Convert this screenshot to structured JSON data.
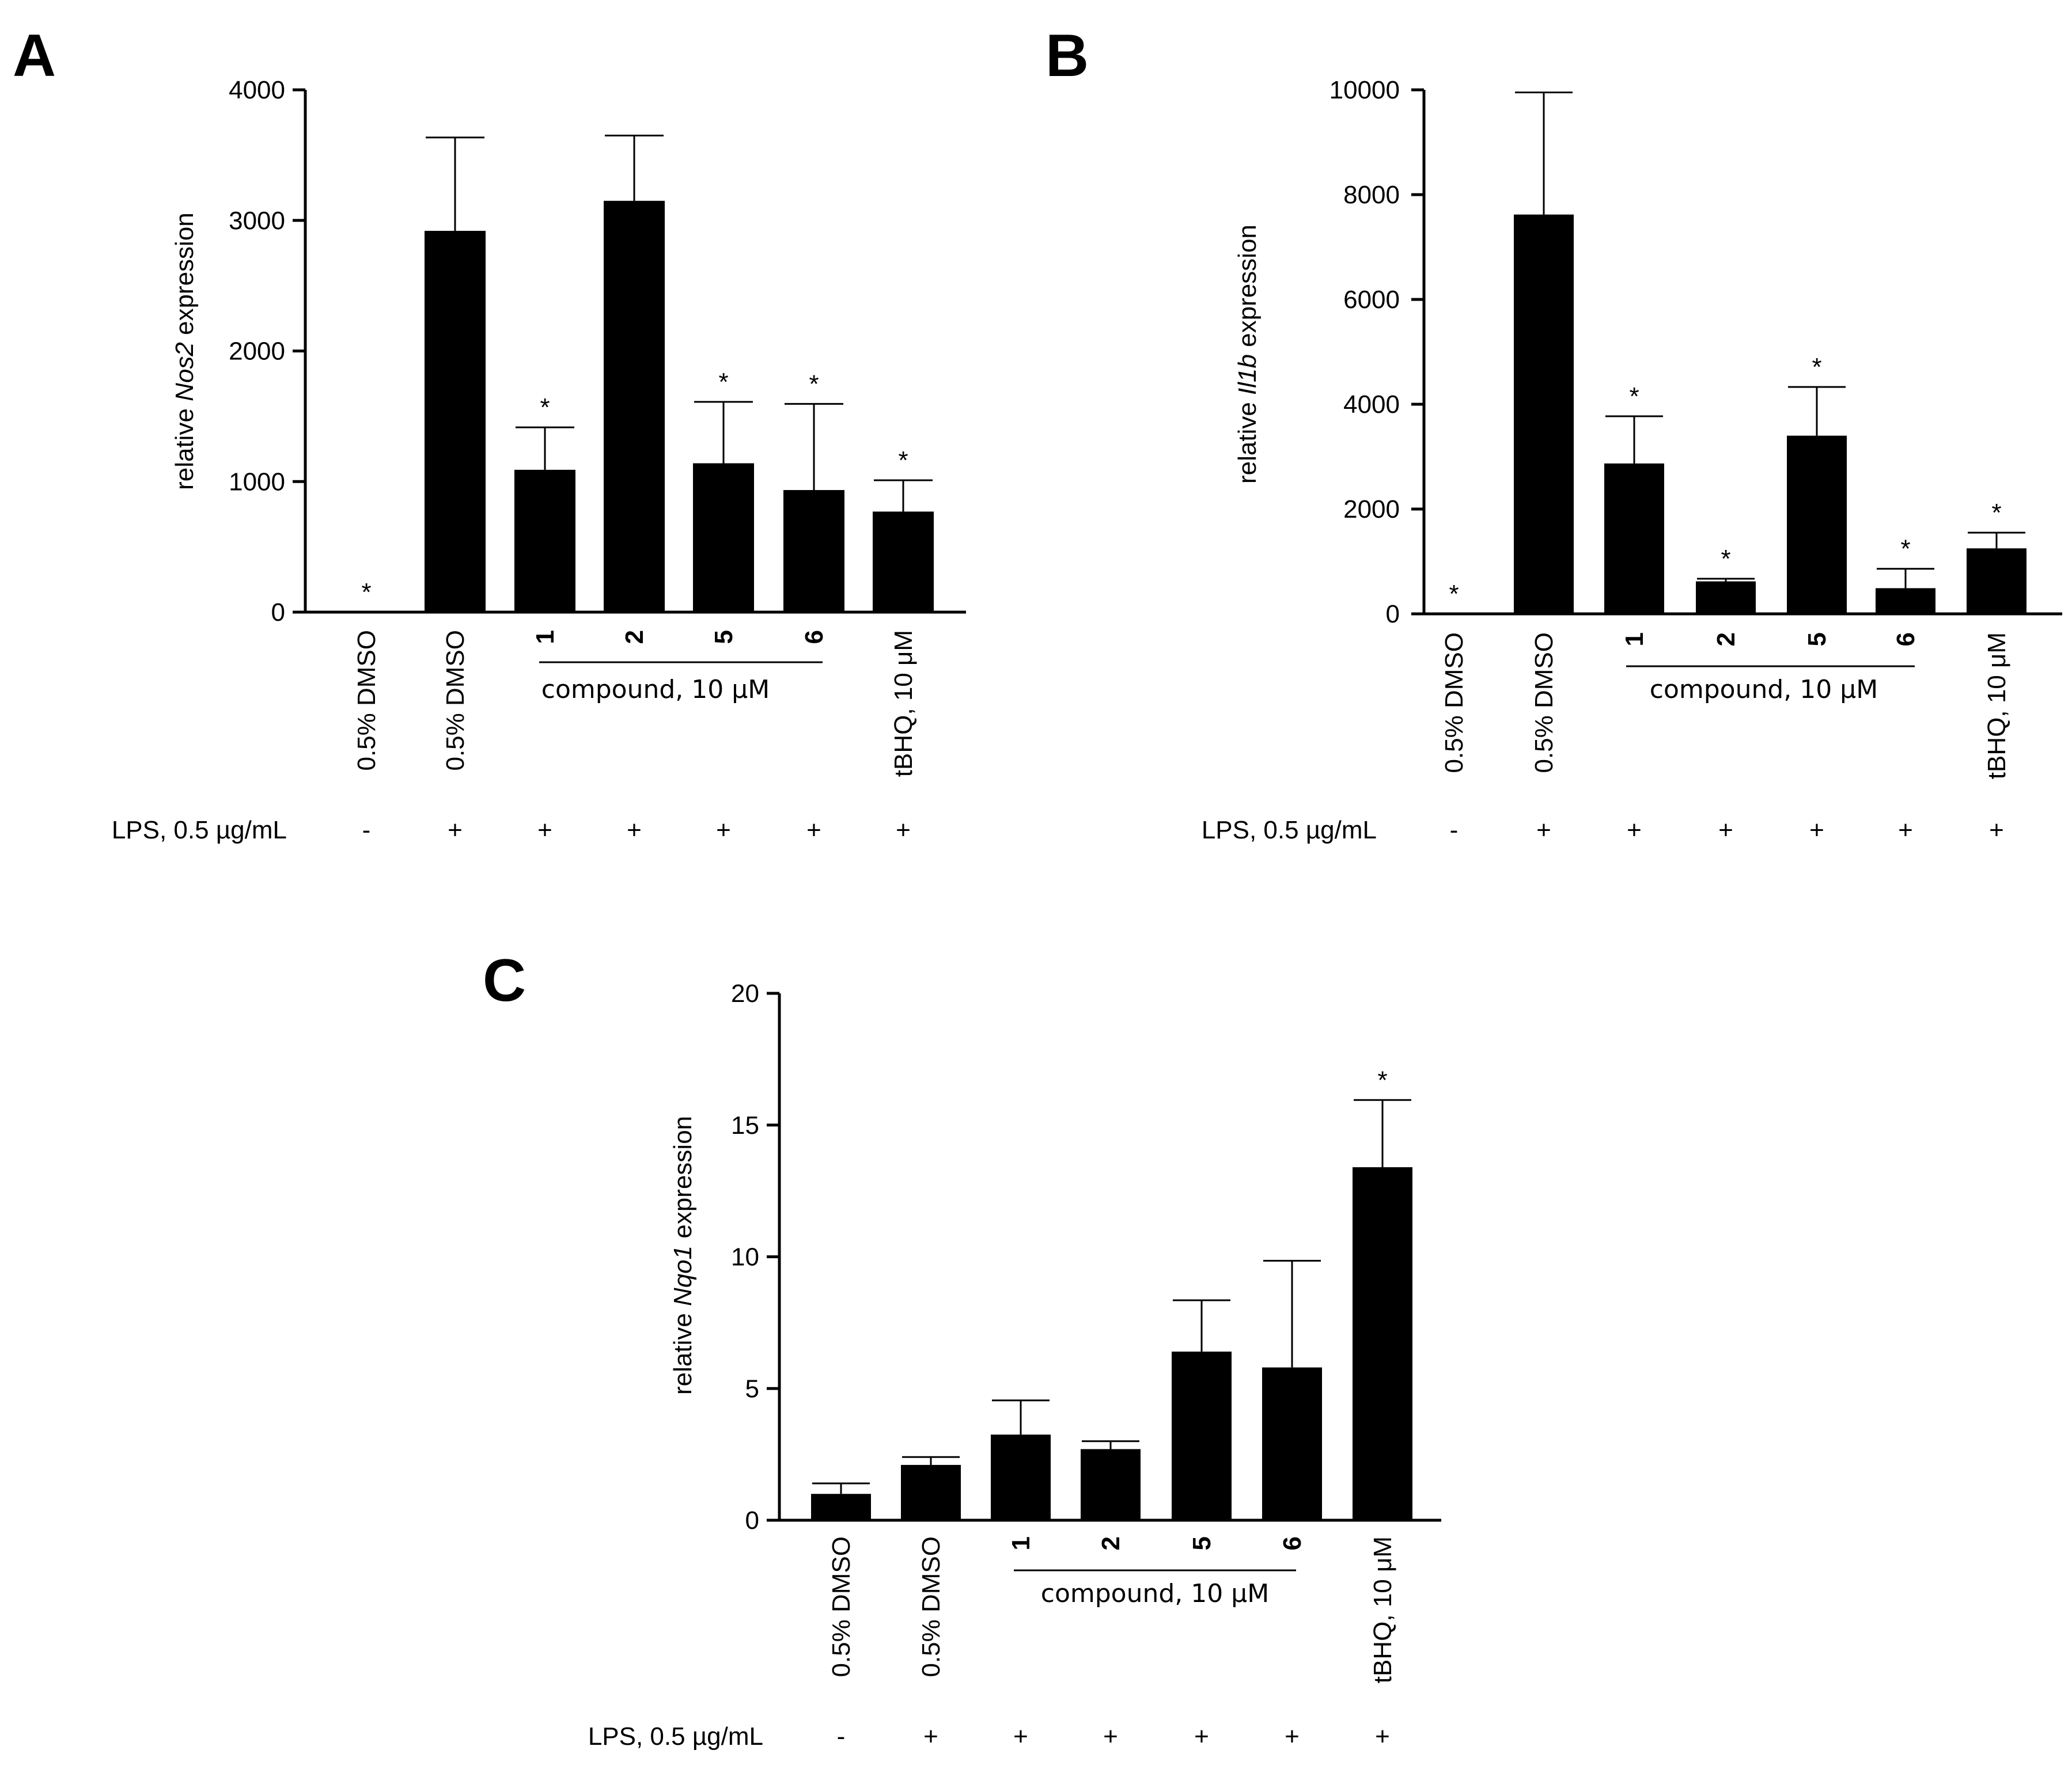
{
  "chart_data": [
    {
      "type": "bar",
      "panel": "A",
      "title": "",
      "xlabel": "",
      "ylabel": {
        "before": "relative ",
        "gene": "Nos2",
        "after": " expression"
      },
      "ylim": [
        0,
        4000
      ],
      "yticks": [
        0,
        1000,
        2000,
        3000,
        4000
      ],
      "categories": [
        "0.5% DMSO",
        "0.5% DMSO",
        "1",
        "2",
        "5",
        "6",
        "tBHQ, 10 μM"
      ],
      "values": [
        0,
        2920,
        1090,
        3150,
        1140,
        935,
        770
      ],
      "errors": [
        0,
        715,
        325,
        500,
        470,
        660,
        240
      ],
      "significant": [
        true,
        false,
        true,
        false,
        true,
        true,
        true
      ],
      "lps_row_label": "LPS, 0.5 µg/mL",
      "lps": [
        "-",
        "+",
        "+",
        "+",
        "+",
        "+",
        "+"
      ],
      "group_label": "compound, 10 µM",
      "group_range": [
        2,
        5
      ],
      "significance_symbol": "*"
    },
    {
      "type": "bar",
      "panel": "B",
      "title": "",
      "xlabel": "",
      "ylabel": {
        "before": "relative ",
        "gene": "Il1b",
        "after": " expression"
      },
      "ylim": [
        0,
        10000
      ],
      "yticks": [
        0,
        2000,
        4000,
        6000,
        8000,
        10000
      ],
      "categories": [
        "0.5% DMSO",
        "0.5% DMSO",
        "1",
        "2",
        "5",
        "6",
        "tBHQ, 10 μM"
      ],
      "values": [
        0,
        7620,
        2870,
        620,
        3400,
        490,
        1250
      ],
      "errors": [
        0,
        2330,
        900,
        50,
        930,
        370,
        300
      ],
      "significant": [
        true,
        false,
        true,
        true,
        true,
        true,
        true
      ],
      "lps_row_label": "LPS, 0.5 µg/mL",
      "lps": [
        "-",
        "+",
        "+",
        "+",
        "+",
        "+",
        "+"
      ],
      "group_label": "compound, 10 µM",
      "group_range": [
        2,
        5
      ],
      "significance_symbol": "*"
    },
    {
      "type": "bar",
      "panel": "C",
      "title": "",
      "xlabel": "",
      "ylabel": {
        "before": "relative ",
        "gene": "Nqo1",
        "after": " expression"
      },
      "ylim": [
        0,
        20
      ],
      "yticks": [
        0,
        5,
        10,
        15,
        20
      ],
      "categories": [
        "0.5% DMSO",
        "0.5% DMSO",
        "1",
        "2",
        "5",
        "6",
        "tBHQ, 10 μM"
      ],
      "values": [
        1.0,
        2.1,
        3.25,
        2.7,
        6.4,
        5.8,
        13.4
      ],
      "errors": [
        0.4,
        0.3,
        1.3,
        0.3,
        1.95,
        4.05,
        2.55
      ],
      "significant": [
        false,
        false,
        false,
        false,
        false,
        false,
        true
      ],
      "lps_row_label": "LPS, 0.5 µg/mL",
      "lps": [
        "-",
        "+",
        "+",
        "+",
        "+",
        "+",
        "+"
      ],
      "group_label": "compound, 10 µM",
      "group_range": [
        2,
        5
      ],
      "significance_symbol": "*"
    }
  ]
}
